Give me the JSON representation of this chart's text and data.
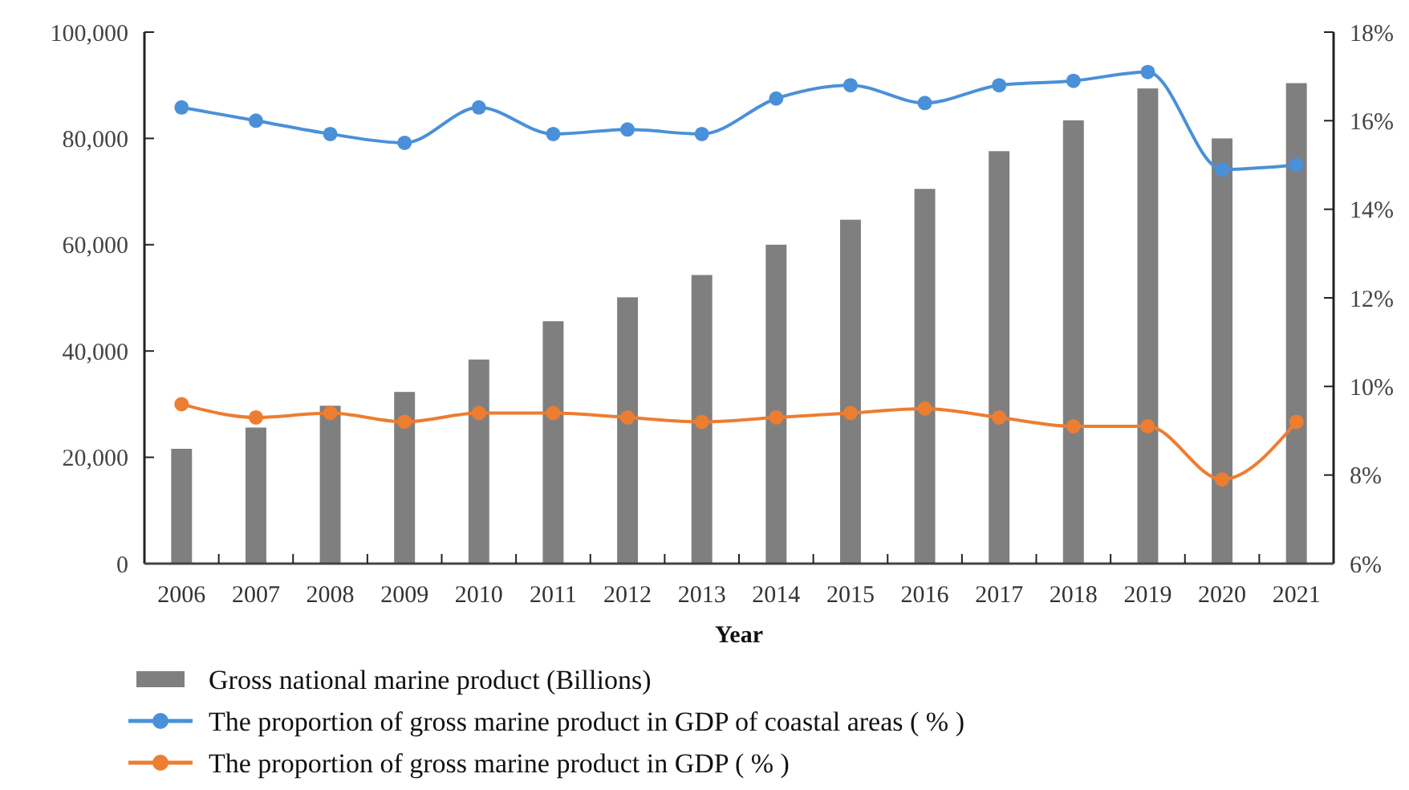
{
  "chart_data": {
    "type": "bar",
    "xlabel": "Year",
    "categories": [
      "2006",
      "2007",
      "2008",
      "2009",
      "2010",
      "2011",
      "2012",
      "2013",
      "2014",
      "2015",
      "2016",
      "2017",
      "2018",
      "2019",
      "2020",
      "2021"
    ],
    "series": [
      {
        "name": "Gross national marine product (Billions)",
        "color": "#7f7f7f",
        "values": [
          21600,
          25600,
          29700,
          32300,
          38400,
          45600,
          50100,
          54300,
          60000,
          64700,
          70500,
          77600,
          83400,
          89400,
          80000,
          90400
        ]
      },
      {
        "name": "The proportion of gross marine product in GDP of coastal areas ( % )",
        "type": "line",
        "axis": "y2",
        "color": "#4a90d9",
        "values": [
          16.3,
          16.0,
          15.7,
          15.5,
          16.3,
          15.7,
          15.8,
          15.7,
          16.5,
          16.8,
          16.4,
          16.8,
          16.9,
          17.1,
          14.9,
          15.0
        ]
      },
      {
        "name": "The proportion of gross marine product in GDP ( % )",
        "type": "line",
        "axis": "y2",
        "color": "#ed7d31",
        "values": [
          9.6,
          9.3,
          9.4,
          9.2,
          9.4,
          9.4,
          9.3,
          9.2,
          9.3,
          9.4,
          9.5,
          9.3,
          9.1,
          9.1,
          7.9,
          9.2
        ]
      }
    ],
    "ylim": [
      0,
      100000
    ],
    "yticks": [
      0,
      {
        "value": 20000,
        "label": "20,000"
      },
      {
        "value": 40000,
        "label": "40,000"
      },
      {
        "value": 60000,
        "label": "60,000"
      },
      {
        "value": 80000,
        "label": "80,000"
      },
      {
        "value": 100000,
        "label": "100,000"
      }
    ],
    "y2lim": [
      6,
      18
    ],
    "y2ticks": [
      {
        "value": 6,
        "label": "6%"
      },
      {
        "value": 8,
        "label": "8%"
      },
      {
        "value": 10,
        "label": "10%"
      },
      {
        "value": 12,
        "label": "12%"
      },
      {
        "value": 14,
        "label": "14%"
      },
      {
        "value": 16,
        "label": "16%"
      },
      {
        "value": 18,
        "label": "18%"
      }
    ],
    "marker": "circle",
    "line_style": "solid",
    "legend": "bottom",
    "grid": false
  }
}
